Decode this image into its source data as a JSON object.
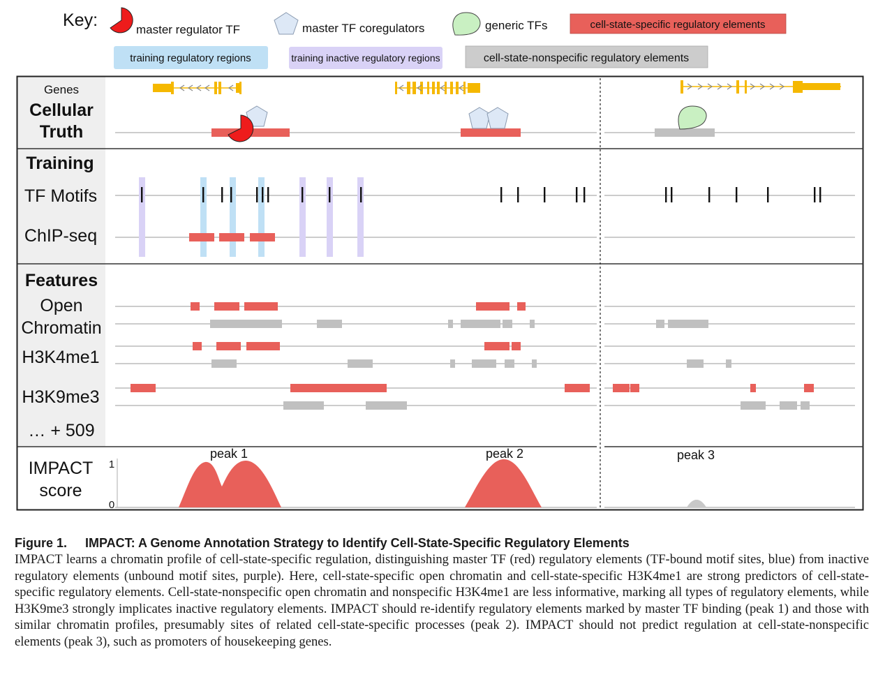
{
  "key": {
    "title": "Key:",
    "items": [
      {
        "label": "master regulator TF",
        "shape": "pacman",
        "color": "#ee1c1c"
      },
      {
        "label": "master TF coregulators",
        "shape": "pentagon",
        "color": "#dde8f6"
      },
      {
        "label": "generic TFs",
        "shape": "blob",
        "color": "#c9f0c2"
      },
      {
        "label": "cell-state-specific regulatory elements",
        "shape": "box",
        "color": "#e8605a"
      },
      {
        "label": "training regulatory regions",
        "shape": "box",
        "color": "#bfe0f5"
      },
      {
        "label": "training inactive regulatory regions",
        "shape": "box",
        "color": "#d9d2f6"
      },
      {
        "label": "cell-state-nonspecific regulatory elements",
        "shape": "box",
        "color": "#cccccc"
      }
    ]
  },
  "panel": {
    "genes_label": "Genes",
    "cellular_truth_line1": "Cellular",
    "cellular_truth_line2": "Truth",
    "training_heading": "Training",
    "tf_motifs_label": "TF Motifs",
    "chipseq_label": "ChIP-seq",
    "features_heading": "Features",
    "open_chromatin_line1": "Open",
    "open_chromatin_line2": "Chromatin",
    "h3k4me1_label": "H3K4me1",
    "h3k9me3_label": "H3K9me3",
    "more_label": "… + 509",
    "impact_line1": "IMPACT",
    "impact_line2": "score",
    "score_max": "1",
    "score_min": "0",
    "peaks": [
      "peak 1",
      "peak 2",
      "peak 3"
    ]
  },
  "colors": {
    "specific": "#e8605a",
    "nonspecific": "#c0c0c0",
    "training_active": "#bfe0f5",
    "training_inactive": "#d9d2f6",
    "gene": "#f5b800",
    "master_tf": "#ee1c1c"
  },
  "caption": {
    "figure_number": "Figure 1.",
    "title": "IMPACT: A Genome Annotation Strategy to Identify Cell-State-Specific Regulatory Elements",
    "body": "IMPACT learns a chromatin profile of cell-state-specific regulation, distinguishing master TF (red) regulatory elements (TF-bound motif sites, blue) from inactive regulatory elements (unbound motif sites, purple). Here, cell-state-specific open chromatin and cell-state-specific H3K4me1 are strong predictors of cell-state-specific regulatory elements. Cell-state-nonspecific open chromatin and nonspecific H3K4me1 are less informative, marking all types of regulatory elements, while H3K9me3 strongly implicates inactive regulatory elements. IMPACT should re-identify regulatory elements marked by master TF binding (peak 1) and those with similar chromatin profiles, presumably sites of related cell-state-specific processes (peak 2). IMPACT should not predict regulation at cell-state-nonspecific elements (peak 3), such as promoters of housekeeping genes."
  }
}
